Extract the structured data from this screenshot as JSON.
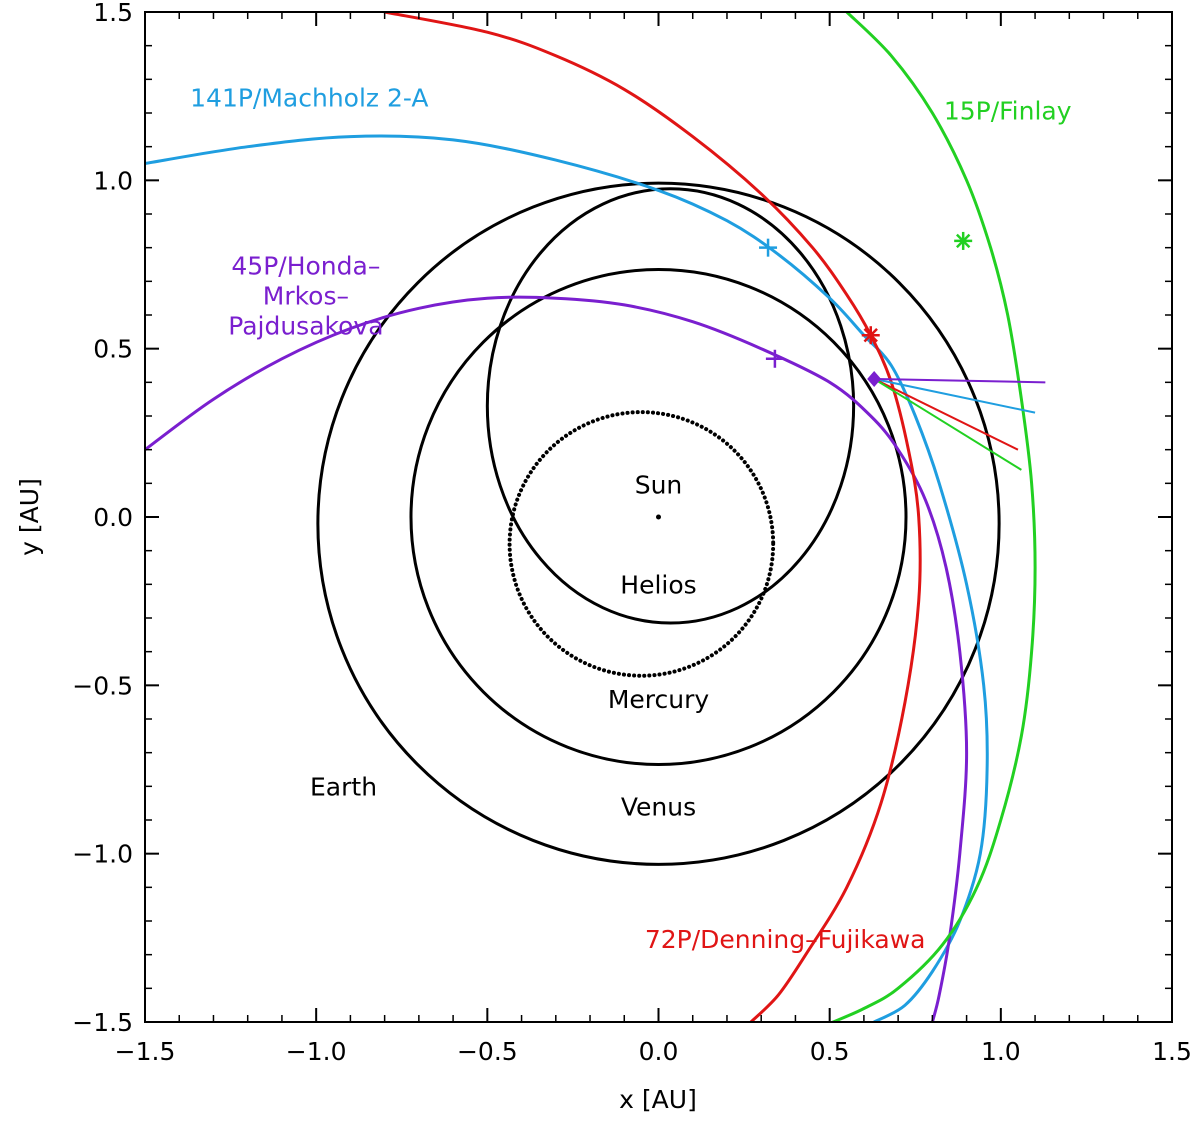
{
  "chart_data": {
    "type": "line",
    "xlabel": "x [AU]",
    "ylabel": "y [AU]",
    "xlim": [
      -1.5,
      1.5
    ],
    "ylim": [
      -1.5,
      1.5
    ],
    "xticks": [
      -1.5,
      -1.0,
      -0.5,
      0.0,
      0.5,
      1.0,
      1.5
    ],
    "yticks": [
      -1.5,
      -1.0,
      -0.5,
      0.0,
      0.5,
      1.0,
      1.5
    ],
    "xtick_labels": [
      "−1.5",
      "−1.0",
      "−0.5",
      "0.0",
      "0.5",
      "1.0",
      "1.5"
    ],
    "ytick_labels": [
      "−1.5",
      "−1.0",
      "−0.5",
      "0.0",
      "0.5",
      "1.0",
      "1.5"
    ],
    "sun": {
      "label": "Sun",
      "x": 0.0,
      "y": 0.0
    },
    "planet_orbits": [
      {
        "name": "Mercury",
        "center": [
          -0.05,
          -0.08
        ],
        "r": 0.385,
        "dotted": true,
        "label_pos": [
          0.0,
          -0.54
        ]
      },
      {
        "name": "Venus",
        "center": [
          0.0,
          0.0
        ],
        "r": 0.723,
        "dotted": false,
        "label_pos": [
          0.0,
          -0.86
        ]
      },
      {
        "name": "Earth",
        "center": [
          0.0,
          -0.02
        ],
        "r": 0.995,
        "dotted": false,
        "label_pos": [
          -0.92,
          -0.8
        ]
      },
      {
        "name": "Helios",
        "ellipse": true,
        "center": [
          0.035,
          0.33
        ],
        "rx": 0.535,
        "ry": 0.645,
        "dotted": false,
        "label_pos": [
          0.0,
          -0.2
        ]
      }
    ],
    "series": [
      {
        "name": "141P/Machholz 2-A",
        "color": "#1f9ee0",
        "x": [
          -1.5,
          -1.2,
          -0.9,
          -0.6,
          -0.3,
          0.0,
          0.2,
          0.35,
          0.5,
          0.6,
          0.68,
          0.75,
          0.82,
          0.9,
          0.95,
          0.96,
          0.94,
          0.88,
          0.8,
          0.72,
          0.63
        ],
        "y": [
          1.05,
          1.1,
          1.13,
          1.12,
          1.06,
          0.97,
          0.88,
          0.78,
          0.65,
          0.54,
          0.45,
          0.3,
          0.1,
          -0.2,
          -0.5,
          -0.75,
          -1.0,
          -1.2,
          -1.35,
          -1.45,
          -1.5
        ],
        "marker_x": 0.32,
        "marker_y": 0.8,
        "marker": "plus",
        "label_pos": [
          -1.02,
          1.22
        ],
        "velocity_end": [
          1.1,
          0.31
        ]
      },
      {
        "name": "45P/Honda–\nMrkos–\nPajdusakova",
        "color": "#7a1fcf",
        "x": [
          -1.5,
          -1.3,
          -1.1,
          -0.9,
          -0.7,
          -0.5,
          -0.3,
          -0.1,
          0.1,
          0.3,
          0.5,
          0.62,
          0.7,
          0.78,
          0.84,
          0.88,
          0.9,
          0.88,
          0.85,
          0.82,
          0.8
        ],
        "y": [
          0.2,
          0.35,
          0.47,
          0.56,
          0.62,
          0.65,
          0.65,
          0.63,
          0.58,
          0.5,
          0.4,
          0.3,
          0.2,
          0.05,
          -0.15,
          -0.4,
          -0.7,
          -1.0,
          -1.25,
          -1.42,
          -1.5
        ],
        "marker_x": 0.34,
        "marker_y": 0.47,
        "marker": "plus",
        "label_pos": [
          -1.03,
          0.72
        ],
        "velocity_end": [
          1.13,
          0.4
        ]
      },
      {
        "name": "72P/Denning–Fujikawa",
        "color": "#e01515",
        "x": [
          -0.8,
          -0.5,
          -0.3,
          -0.1,
          0.1,
          0.3,
          0.45,
          0.55,
          0.62,
          0.68,
          0.73,
          0.76,
          0.76,
          0.72,
          0.65,
          0.55,
          0.43,
          0.35,
          0.27
        ],
        "y": [
          1.5,
          1.44,
          1.37,
          1.27,
          1.13,
          0.96,
          0.8,
          0.66,
          0.54,
          0.4,
          0.2,
          0.0,
          -0.25,
          -0.55,
          -0.85,
          -1.1,
          -1.3,
          -1.42,
          -1.5
        ],
        "marker_x": 0.62,
        "marker_y": 0.54,
        "marker": "asterisk",
        "label_pos": [
          0.37,
          -1.28
        ],
        "velocity_end": [
          1.05,
          0.2
        ]
      },
      {
        "name": "15P/Finlay",
        "color": "#22d022",
        "x": [
          0.55,
          0.68,
          0.8,
          0.9,
          0.97,
          1.02,
          1.06,
          1.09,
          1.1,
          1.09,
          1.06,
          1.0,
          0.93,
          0.83,
          0.7,
          0.6,
          0.51
        ],
        "y": [
          1.5,
          1.37,
          1.2,
          1.0,
          0.8,
          0.6,
          0.35,
          0.1,
          -0.15,
          -0.4,
          -0.65,
          -0.9,
          -1.1,
          -1.27,
          -1.4,
          -1.46,
          -1.5
        ],
        "marker_x": 0.89,
        "marker_y": 0.82,
        "marker": "asterisk",
        "label_pos": [
          1.02,
          1.18
        ],
        "velocity_end": [
          1.06,
          0.14
        ]
      }
    ],
    "encounter_point": {
      "x": 0.63,
      "y": 0.41,
      "color": "#7a1fcf"
    }
  }
}
